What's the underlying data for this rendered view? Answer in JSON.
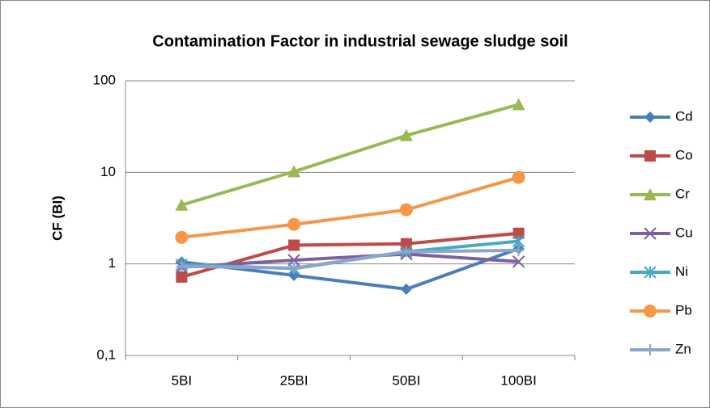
{
  "chart_data": {
    "type": "line",
    "title": "Contamination Factor in industrial sewage sludge soil",
    "y_label": "CF (BI)",
    "log_scale": true,
    "grid": true,
    "categories": [
      "5BI",
      "25BI",
      "50BI",
      "100BI"
    ],
    "ylim": [
      0.1,
      100
    ],
    "yticks": [
      {
        "value": 0.1,
        "label": "0,1"
      },
      1,
      10,
      100
    ],
    "series": [
      {
        "name": "Cd",
        "color": "#4a7ebb",
        "marker": "diamond",
        "values": [
          1.05,
          0.75,
          0.53,
          1.47
        ]
      },
      {
        "name": "Co",
        "color": "#be4b48",
        "marker": "square",
        "values": [
          0.72,
          1.6,
          1.66,
          2.16
        ]
      },
      {
        "name": "Cr",
        "color": "#98b954",
        "marker": "triangle",
        "values": [
          4.4,
          10.2,
          25.3,
          55
        ]
      },
      {
        "name": "Cu",
        "color": "#7d60a0",
        "marker": "x",
        "values": [
          0.92,
          1.1,
          1.28,
          1.06
        ]
      },
      {
        "name": "Ni",
        "color": "#46aac5",
        "marker": "star",
        "values": [
          0.98,
          0.89,
          1.36,
          1.77
        ]
      },
      {
        "name": "Pb",
        "color": "#f79646",
        "marker": "circle",
        "values": [
          1.95,
          2.7,
          3.9,
          8.8
        ]
      },
      {
        "name": "Zn",
        "color": "#8ea5cb",
        "marker": "plus",
        "values": [
          0.94,
          0.9,
          1.36,
          1.41
        ]
      }
    ]
  }
}
